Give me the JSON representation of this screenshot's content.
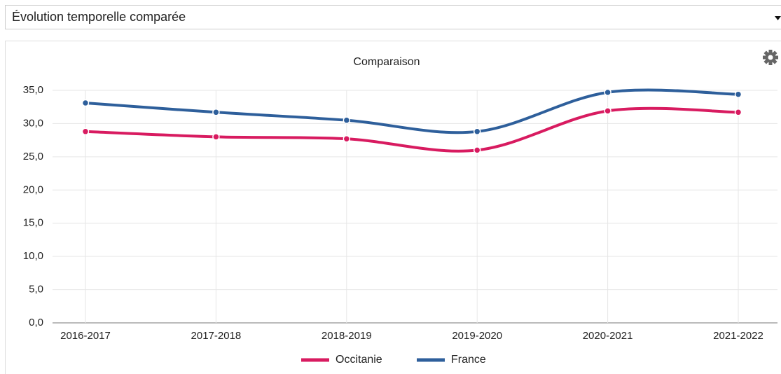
{
  "dropdown": {
    "label": "Évolution temporelle comparée"
  },
  "chart_data": {
    "type": "line",
    "title": "Comparaison",
    "categories": [
      "2016-2017",
      "2017-2018",
      "2018-2019",
      "2019-2020",
      "2020-2021",
      "2021-2022"
    ],
    "series": [
      {
        "name": "Occitanie",
        "color": "#d81b60",
        "values": [
          28.8,
          28.0,
          27.7,
          26.0,
          31.9,
          31.7
        ]
      },
      {
        "name": "France",
        "color": "#2e5f9b",
        "values": [
          33.1,
          31.7,
          30.5,
          28.8,
          34.7,
          34.4
        ]
      }
    ],
    "ylim": [
      0,
      35
    ],
    "yticks": [
      {
        "value": 0,
        "label": "0,0"
      },
      {
        "value": 5,
        "label": "5,0"
      },
      {
        "value": 10,
        "label": "10,0"
      },
      {
        "value": 15,
        "label": "15,0"
      },
      {
        "value": 20,
        "label": "20,0"
      },
      {
        "value": 25,
        "label": "25,0"
      },
      {
        "value": 30,
        "label": "30,0"
      },
      {
        "value": 35,
        "label": "35,0"
      }
    ],
    "grid": true,
    "legend": "bottom"
  }
}
